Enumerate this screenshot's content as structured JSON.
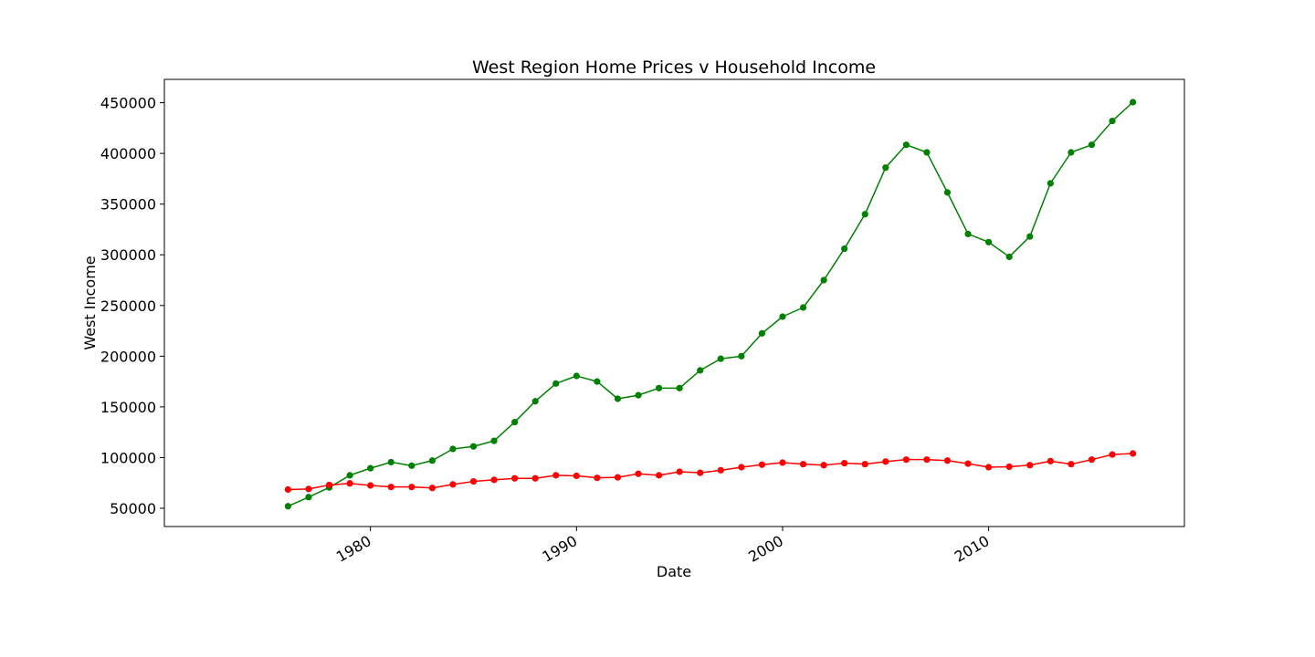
{
  "chart_data": {
    "type": "line",
    "title": "West Region Home Prices v Household Income",
    "xlabel": "Date",
    "ylabel": "West Income",
    "x": [
      1976,
      1977,
      1978,
      1979,
      1980,
      1981,
      1982,
      1983,
      1984,
      1985,
      1986,
      1987,
      1988,
      1989,
      1990,
      1991,
      1992,
      1993,
      1994,
      1995,
      1996,
      1997,
      1998,
      1999,
      2000,
      2001,
      2002,
      2003,
      2004,
      2005,
      2006,
      2007,
      2008,
      2009,
      2010,
      2011,
      2012,
      2013,
      2014,
      2015,
      2016,
      2017
    ],
    "series": [
      {
        "color": "#008000",
        "values": [
          52000,
          61000,
          70500,
          82500,
          89500,
          95500,
          92000,
          97000,
          108500,
          111000,
          116500,
          135000,
          155500,
          173000,
          180500,
          175000,
          158000,
          161500,
          168500,
          168500,
          186000,
          197500,
          200000,
          222500,
          239000,
          248000,
          275000,
          306000,
          340000,
          386000,
          408500,
          401000,
          361500,
          320500,
          312500,
          298000,
          318000,
          370500,
          401000,
          408500,
          432000,
          450500
        ]
      },
      {
        "color": "#ff0000",
        "values": [
          68500,
          69000,
          73000,
          74500,
          72500,
          71000,
          71000,
          70000,
          73500,
          76500,
          78000,
          79500,
          79500,
          82500,
          82000,
          80000,
          80500,
          84000,
          82500,
          86000,
          85000,
          87500,
          90500,
          93000,
          95000,
          93500,
          92500,
          94500,
          93500,
          96000,
          98000,
          98000,
          97000,
          94000,
          90500,
          91000,
          92500,
          96500,
          93500,
          98000,
          103000,
          104000
        ]
      }
    ],
    "xticks": [
      1980,
      1990,
      2000,
      2010
    ],
    "xtick_labels": [
      "1980",
      "1990",
      "2000",
      "2010"
    ],
    "yticks": [
      50000,
      100000,
      150000,
      200000,
      250000,
      300000,
      350000,
      400000,
      450000
    ],
    "ytick_labels": [
      "50000",
      "100000",
      "150000",
      "200000",
      "250000",
      "300000",
      "350000",
      "400000",
      "450000"
    ],
    "xlim": [
      1970,
      2019.5
    ],
    "ylim": [
      32000,
      473000
    ],
    "grid": false
  }
}
